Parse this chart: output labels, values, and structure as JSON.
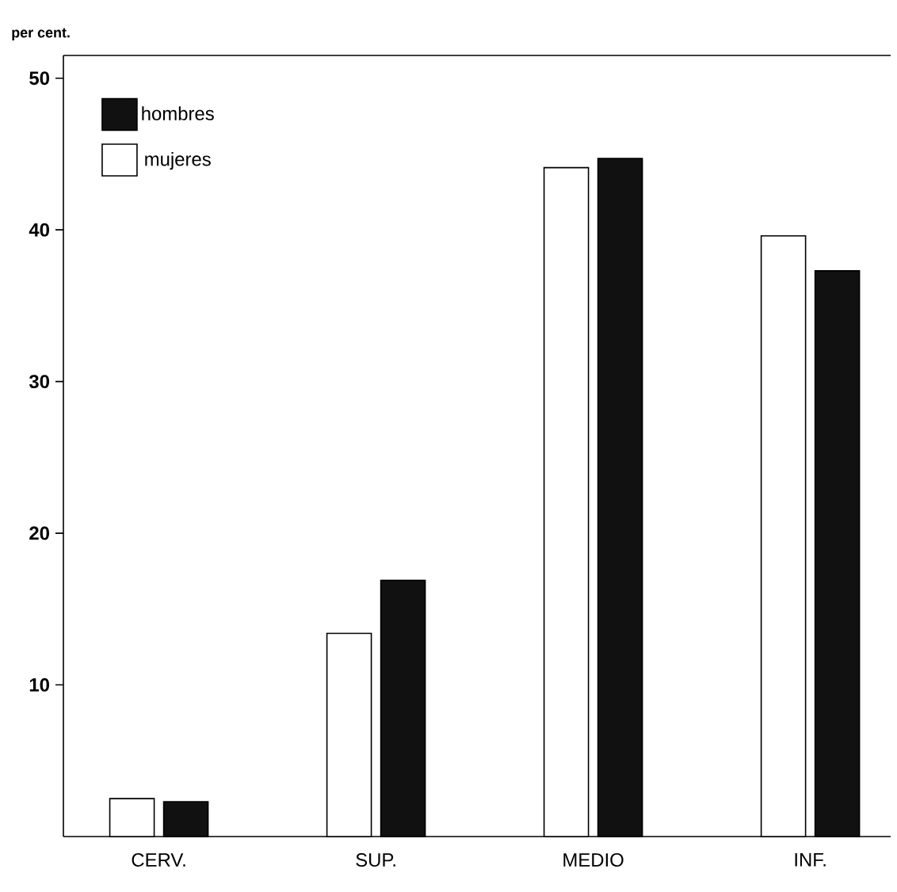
{
  "chart_data": {
    "type": "bar",
    "ylabel": "per cent.",
    "categories": [
      "CERV.",
      "SUP.",
      "MEDIO",
      "INF."
    ],
    "series": [
      {
        "name": "mujeres",
        "color": "#ffffff",
        "values": [
          2.5,
          13.4,
          44.1,
          39.6
        ]
      },
      {
        "name": "hombres",
        "color": "#111111",
        "values": [
          2.3,
          16.9,
          44.7,
          37.3
        ]
      }
    ],
    "ylim": [
      0,
      51.5
    ],
    "yticks": [
      10,
      20,
      30,
      40,
      50
    ],
    "legend": "top left"
  }
}
